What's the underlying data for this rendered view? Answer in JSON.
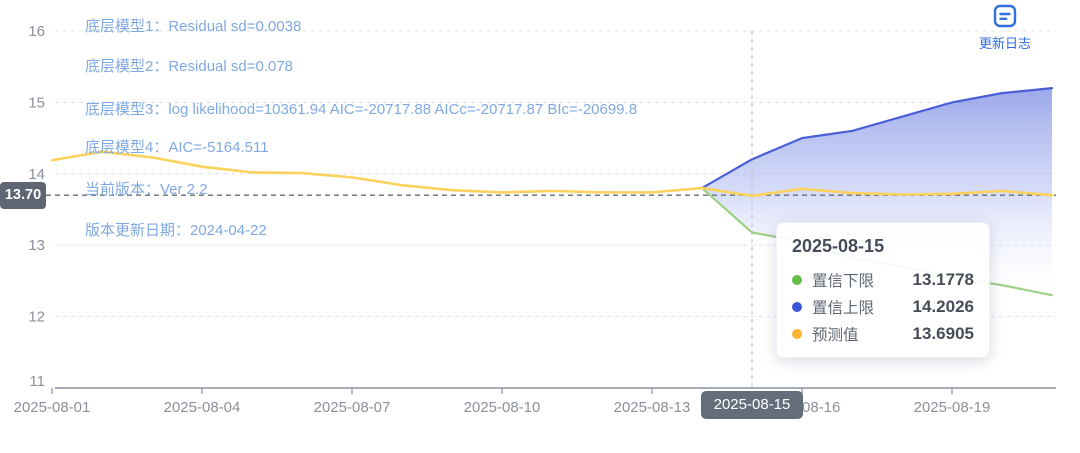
{
  "header": {
    "update_log_label": "更新日志",
    "update_log_icon": "log-icon"
  },
  "annotations": [
    "底层模型1：Residual sd=0.0038",
    "底层模型2：Residual sd=0.078",
    "底层模型3：log likelihood=10361.94 AIC=-20717.88 AICc=-20717.87 BIc=-20699.8",
    "底层模型4：AIC=-5164.511",
    "当前版本：Ver 2.2",
    "版本更新日期：2024-04-22"
  ],
  "x_axis": {
    "selected_label": "2025-08-15",
    "ticks": [
      {
        "label": "2025-08-01",
        "index": 0
      },
      {
        "label": "2025-08-04",
        "index": 3
      },
      {
        "label": "2025-08-07",
        "index": 6
      },
      {
        "label": "2025-08-10",
        "index": 9
      },
      {
        "label": "2025-08-13",
        "index": 12
      },
      {
        "label": "2025-08-16",
        "index": 15
      },
      {
        "label": "2025-08-19",
        "index": 18
      }
    ]
  },
  "tooltip": {
    "title": "2025-08-15",
    "rows": [
      {
        "name": "置信下限",
        "value": "13.1778",
        "color": "#67bd4a"
      },
      {
        "name": "置信上限",
        "value": "14.2026",
        "color": "#3a57d4"
      },
      {
        "name": "预测值",
        "value": "13.6905",
        "color": "#fbb232"
      }
    ]
  },
  "chart_data": {
    "type": "line",
    "x": [
      "2025-08-01",
      "2025-08-02",
      "2025-08-03",
      "2025-08-04",
      "2025-08-05",
      "2025-08-06",
      "2025-08-07",
      "2025-08-08",
      "2025-08-09",
      "2025-08-10",
      "2025-08-11",
      "2025-08-12",
      "2025-08-13",
      "2025-08-14",
      "2025-08-15",
      "2025-08-16",
      "2025-08-17",
      "2025-08-18",
      "2025-08-19",
      "2025-08-20",
      "2025-08-21"
    ],
    "ylim": [
      11,
      16
    ],
    "y_ticks": [
      11,
      12,
      13,
      14,
      15,
      16
    ],
    "grid": true,
    "legend_position": "none",
    "highlight_date": "2025-08-15",
    "reference_line": {
      "value": 13.7,
      "label": "13.70"
    },
    "series": [
      {
        "name": "预测值",
        "color": "#fbd25c",
        "width": 2.6,
        "start_index": 0,
        "values": [
          14.19,
          14.31,
          14.23,
          14.1,
          14.02,
          14.01,
          13.95,
          13.84,
          13.77,
          13.74,
          13.76,
          13.74,
          13.74,
          13.8,
          13.6905,
          13.79,
          13.73,
          13.71,
          13.72,
          13.76,
          13.7
        ]
      },
      {
        "name": "置信上限",
        "color": "#4a5fd6",
        "width": 2.2,
        "start_index": 13,
        "values": [
          13.8,
          14.2026,
          14.5,
          14.6,
          14.8,
          15.0,
          15.13,
          15.2
        ]
      },
      {
        "name": "置信下限",
        "color": "#9ed186",
        "width": 2.2,
        "start_index": 13,
        "values": [
          13.8,
          13.1778,
          13.05,
          12.82,
          12.7,
          12.55,
          12.44,
          12.3
        ]
      }
    ],
    "band": {
      "upper": "置信上限",
      "lower": "置信下限",
      "fill_top": "#5f74dd",
      "fill_bottom": "#ffffff"
    }
  },
  "colors": {
    "grid_line": "#dde1ea",
    "ref_line": "#676c76",
    "vline": "#c2c6cf",
    "axis_line": "#8a929e",
    "axis_text": "#8b909a",
    "annotation_text": "#7fa9e2",
    "accent_blue": "#2f6fe0",
    "badge_bg": "#5d6672",
    "badge_x_bg": "#646e7a",
    "tooltip_title": "#474d58",
    "tooltip_label": "#5f6673",
    "tooltip_value": "#474d58"
  }
}
